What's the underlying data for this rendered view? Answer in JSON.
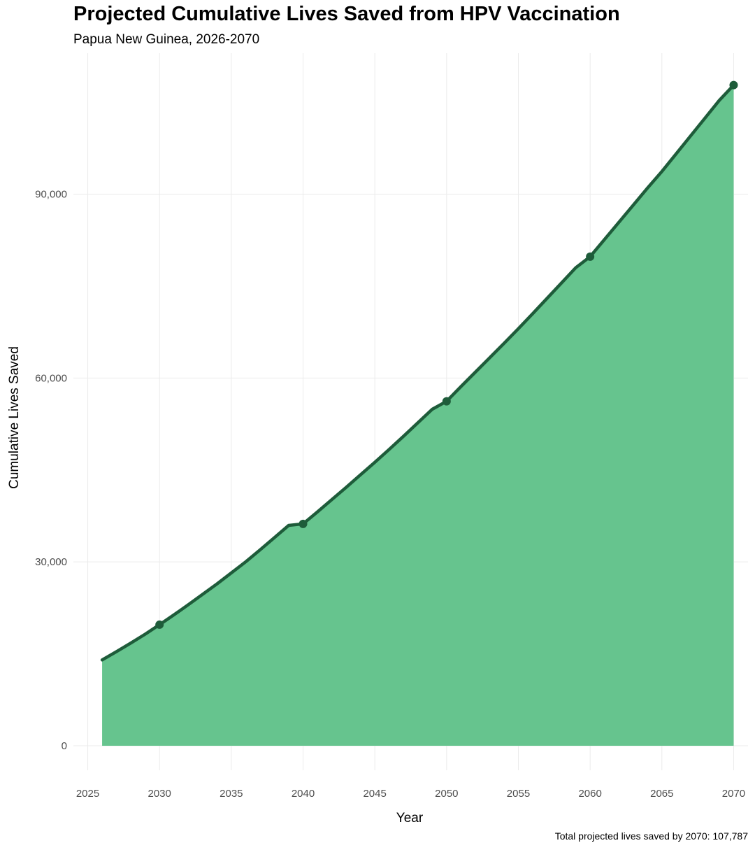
{
  "chart_data": {
    "type": "area",
    "title": "Projected Cumulative Lives Saved from HPV Vaccination",
    "subtitle": "Papua New Guinea, 2026-2070",
    "xlabel": "Year",
    "ylabel": "Cumulative Lives Saved",
    "caption": "Total projected lives saved by 2070: 107,787",
    "xlim": [
      2024,
      2071
    ],
    "ylim": [
      -4000,
      113000
    ],
    "x_ticks": [
      2025,
      2030,
      2035,
      2040,
      2045,
      2050,
      2055,
      2060,
      2065,
      2070
    ],
    "x_tick_labels": [
      "2025",
      "2030",
      "2035",
      "2040",
      "2045",
      "2050",
      "2055",
      "2060",
      "2065",
      "2070"
    ],
    "y_ticks": [
      0,
      30000,
      60000,
      90000
    ],
    "y_tick_labels": [
      "0",
      "30,000",
      "60,000",
      "90,000"
    ],
    "grid": true,
    "series": [
      {
        "x": [
          2026,
          2027,
          2028,
          2029,
          2030,
          2031,
          2032,
          2033,
          2034,
          2035,
          2036,
          2037,
          2038,
          2039,
          2040,
          2041,
          2042,
          2043,
          2044,
          2045,
          2046,
          2047,
          2048,
          2049,
          2050,
          2051,
          2052,
          2053,
          2054,
          2055,
          2056,
          2057,
          2058,
          2059,
          2060,
          2061,
          2062,
          2063,
          2064,
          2065,
          2066,
          2067,
          2068,
          2069,
          2070
        ],
        "y": [
          14000,
          15350,
          16750,
          18200,
          19750,
          21350,
          23000,
          24700,
          26400,
          28200,
          30000,
          31950,
          33950,
          35950,
          36200,
          38150,
          40150,
          42150,
          44200,
          46250,
          48350,
          50500,
          52700,
          54900,
          56200,
          58600,
          60950,
          63300,
          65650,
          68050,
          70500,
          73000,
          75500,
          78000,
          79800,
          82600,
          85400,
          88200,
          91000,
          93700,
          96600,
          99500,
          102400,
          105300,
          107787
        ]
      }
    ],
    "markers": {
      "x": [
        2030,
        2040,
        2050,
        2060,
        2070
      ],
      "y": [
        19750,
        36200,
        56200,
        79800,
        107787
      ]
    },
    "colors": {
      "area_fill": "#66c48e",
      "line": "#1e5c3a",
      "marker": "#1e5c3a",
      "grid": "#ebebeb"
    }
  }
}
